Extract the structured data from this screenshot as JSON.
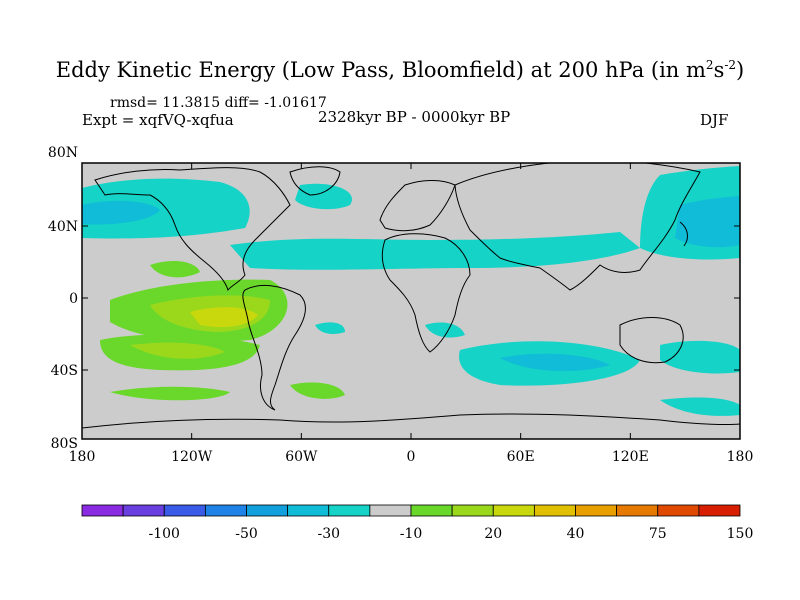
{
  "title": {
    "main": "Eddy Kinetic Energy (Low Pass, Bloomfield) at 200 hPa (in m",
    "sup1": "2",
    "mid": "s",
    "sup2": "-2",
    "end": ")"
  },
  "stats": "rmsd= 11.3815 diff= -1.01617",
  "expt": "Expt = xqfVQ-xqfua",
  "period": "2328kyr BP - 0000kyr BP",
  "season": "DJF",
  "colors": {
    "ocean_neutral": "#cccccc",
    "coast": "#000000",
    "palette": [
      "#8a2be2",
      "#6a3fe0",
      "#3a5be8",
      "#1e82e6",
      "#12a0dc",
      "#10bcd8",
      "#15d3c6",
      "#cccccc",
      "#6ad82a",
      "#9bd81c",
      "#c8d80c",
      "#e0c000",
      "#e8a000",
      "#e67a00",
      "#e04a00",
      "#d81e00"
    ]
  },
  "map": {
    "lat_ticks": [
      "80N",
      "40N",
      "0",
      "40S",
      "80S"
    ],
    "lon_ticks": [
      "180",
      "120W",
      "60W",
      "0",
      "60E",
      "120E",
      "180"
    ]
  },
  "colorbar": {
    "labels": [
      "-100",
      "-50",
      "-30",
      "-10",
      "20",
      "40",
      "75",
      "150"
    ]
  }
}
